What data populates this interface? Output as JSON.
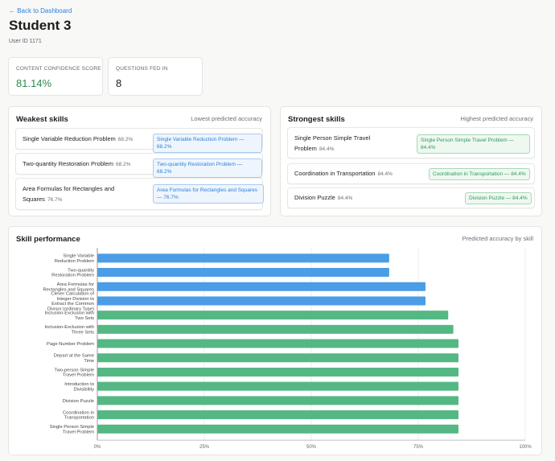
{
  "nav": {
    "back_label": "← Back to Dashboard"
  },
  "header": {
    "title": "Student 3",
    "user_id": "User ID 1171"
  },
  "stats": [
    {
      "label": "CONTENT CONFIDENCE SCORE",
      "value": "81.14%",
      "color": "#2f8a52"
    },
    {
      "label": "QUESTIONS FED IN",
      "value": "8",
      "color": "#1c1c1c"
    }
  ],
  "weakest": {
    "title": "Weakest skills",
    "subtitle": "Lowest predicted accuracy",
    "items": [
      {
        "name": "Single Variable Reduction Problem",
        "pct": "68.2%",
        "tag": "Single Variable Reduction Problem — 68.2%"
      },
      {
        "name": "Two-quantity Restoration Problem",
        "pct": "68.2%",
        "tag": "Two-quantity Restoration Problem — 68.2%"
      },
      {
        "name": "Area Formulas for Rectangles and Squares",
        "pct": "76.7%",
        "tag": "Area Formulas for Rectangles and Squares — 76.7%"
      }
    ]
  },
  "strongest": {
    "title": "Strongest skills",
    "subtitle": "Highest predicted accuracy",
    "items": [
      {
        "name": "Single Person Simple Travel Problem",
        "pct": "84.4%",
        "tag": "Single Person Simple Travel Problem — 84.4%"
      },
      {
        "name": "Coordination in Transportation",
        "pct": "84.4%",
        "tag": "Coordination in Transportation — 84.4%"
      },
      {
        "name": "Division Puzzle",
        "pct": "84.4%",
        "tag": "Division Puzzle — 84.4%"
      }
    ]
  },
  "performance": {
    "title": "Skill performance",
    "subtitle": "Predicted accuracy by skill"
  },
  "colors": {
    "weak_bar": "#4a9de6",
    "strong_bar": "#55b884",
    "accent_blue": "#2f7fd6",
    "accent_green": "#2e9a57"
  },
  "chart_data": {
    "type": "bar",
    "orientation": "horizontal",
    "categories": [
      "Single Variable Reduction Problem",
      "Two-quantity Restoration Problem",
      "Area Formulas for Rectangles and Squares",
      "Clever Calculation of Integer Division to Extract the Common Divisor (ordinary Type)",
      "Inclusion-Exclusion with Two Sets",
      "Inclusion-Exclusion with Three Sets",
      "Page Number Problem",
      "Depart at the Same Time",
      "Two-person Simple Travel Problem",
      "Introduction to Divisibility",
      "Division Puzzle",
      "Coordination in Transportation",
      "Single Person Simple Travel Problem"
    ],
    "category_labels": [
      [
        "Single Variable",
        "Reduction Problem"
      ],
      [
        "Two-quantity",
        "Restoration Problem"
      ],
      [
        "Area Formulas for",
        "Rectangles and Squares"
      ],
      [
        "Clever Calculation of",
        "Integer Division to",
        "Extract the Common",
        "Divisor (ordinary Type)"
      ],
      [
        "Inclusion-Exclusion with",
        "Two Sets"
      ],
      [
        "Inclusion-Exclusion with",
        "Three Sets"
      ],
      [
        "Page Number Problem"
      ],
      [
        "Depart at the Same",
        "Time"
      ],
      [
        "Two-person Simple",
        "Travel Problem"
      ],
      [
        "Introduction to",
        "Divisibility"
      ],
      [
        "Division Puzzle"
      ],
      [
        "Coordination in",
        "Transportation"
      ],
      [
        "Single Person Simple",
        "Travel Problem"
      ]
    ],
    "values": [
      68.2,
      68.2,
      76.7,
      76.7,
      82.0,
      83.2,
      84.4,
      84.4,
      84.4,
      84.4,
      84.4,
      84.4,
      84.4
    ],
    "group": [
      "weak",
      "weak",
      "weak",
      "weak",
      "strong",
      "strong",
      "strong",
      "strong",
      "strong",
      "strong",
      "strong",
      "strong",
      "strong"
    ],
    "xlim": [
      0,
      100
    ],
    "x_ticks": [
      0,
      25,
      50,
      75,
      100
    ],
    "x_tick_labels": [
      "0%",
      "25%",
      "50%",
      "75%",
      "100%"
    ],
    "grid": true,
    "legend": "none"
  }
}
